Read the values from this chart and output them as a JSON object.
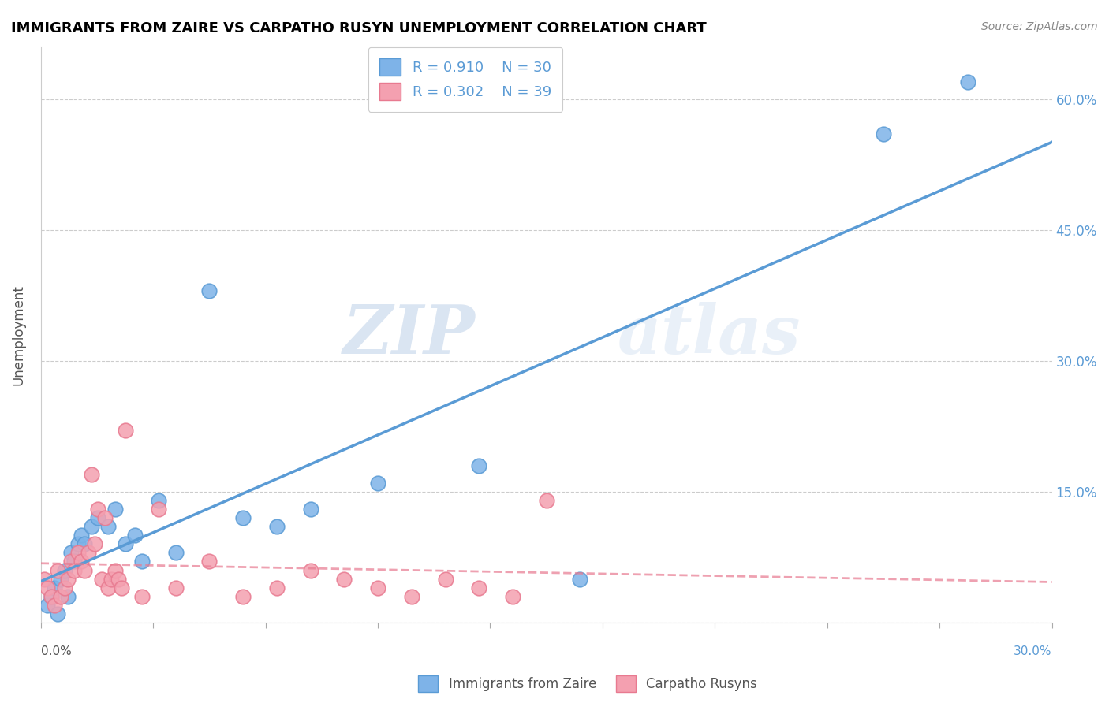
{
  "title": "IMMIGRANTS FROM ZAIRE VS CARPATHO RUSYN UNEMPLOYMENT CORRELATION CHART",
  "source": "Source: ZipAtlas.com",
  "ylabel": "Unemployment",
  "y_ticks": [
    0.0,
    0.15,
    0.3,
    0.45,
    0.6
  ],
  "y_tick_labels": [
    "",
    "15.0%",
    "30.0%",
    "45.0%",
    "60.0%"
  ],
  "xlim": [
    0.0,
    0.3
  ],
  "ylim": [
    0.0,
    0.66
  ],
  "blue_R": "0.910",
  "blue_N": "30",
  "pink_R": "0.302",
  "pink_N": "39",
  "blue_color": "#7EB3E8",
  "pink_color": "#F4A0B0",
  "blue_edge": "#5A9BD5",
  "pink_edge": "#E87A90",
  "legend_label_blue": "Immigrants from Zaire",
  "legend_label_pink": "Carpatho Rusyns",
  "watermark_zip": "ZIP",
  "watermark_atlas": "atlas",
  "blue_scatter_x": [
    0.002,
    0.003,
    0.004,
    0.005,
    0.006,
    0.007,
    0.008,
    0.009,
    0.01,
    0.011,
    0.012,
    0.013,
    0.015,
    0.017,
    0.02,
    0.022,
    0.025,
    0.028,
    0.03,
    0.035,
    0.04,
    0.05,
    0.06,
    0.07,
    0.08,
    0.1,
    0.13,
    0.16,
    0.25,
    0.275
  ],
  "blue_scatter_y": [
    0.02,
    0.03,
    0.04,
    0.01,
    0.05,
    0.06,
    0.03,
    0.08,
    0.07,
    0.09,
    0.1,
    0.09,
    0.11,
    0.12,
    0.11,
    0.13,
    0.09,
    0.1,
    0.07,
    0.14,
    0.08,
    0.38,
    0.12,
    0.11,
    0.13,
    0.16,
    0.18,
    0.05,
    0.56,
    0.62
  ],
  "pink_scatter_x": [
    0.001,
    0.002,
    0.003,
    0.004,
    0.005,
    0.006,
    0.007,
    0.008,
    0.009,
    0.01,
    0.011,
    0.012,
    0.013,
    0.014,
    0.015,
    0.016,
    0.017,
    0.018,
    0.019,
    0.02,
    0.021,
    0.022,
    0.023,
    0.024,
    0.025,
    0.03,
    0.035,
    0.04,
    0.05,
    0.06,
    0.07,
    0.08,
    0.09,
    0.1,
    0.11,
    0.12,
    0.13,
    0.14,
    0.15
  ],
  "pink_scatter_y": [
    0.05,
    0.04,
    0.03,
    0.02,
    0.06,
    0.03,
    0.04,
    0.05,
    0.07,
    0.06,
    0.08,
    0.07,
    0.06,
    0.08,
    0.17,
    0.09,
    0.13,
    0.05,
    0.12,
    0.04,
    0.05,
    0.06,
    0.05,
    0.04,
    0.22,
    0.03,
    0.13,
    0.04,
    0.07,
    0.03,
    0.04,
    0.06,
    0.05,
    0.04,
    0.03,
    0.05,
    0.04,
    0.03,
    0.14
  ]
}
